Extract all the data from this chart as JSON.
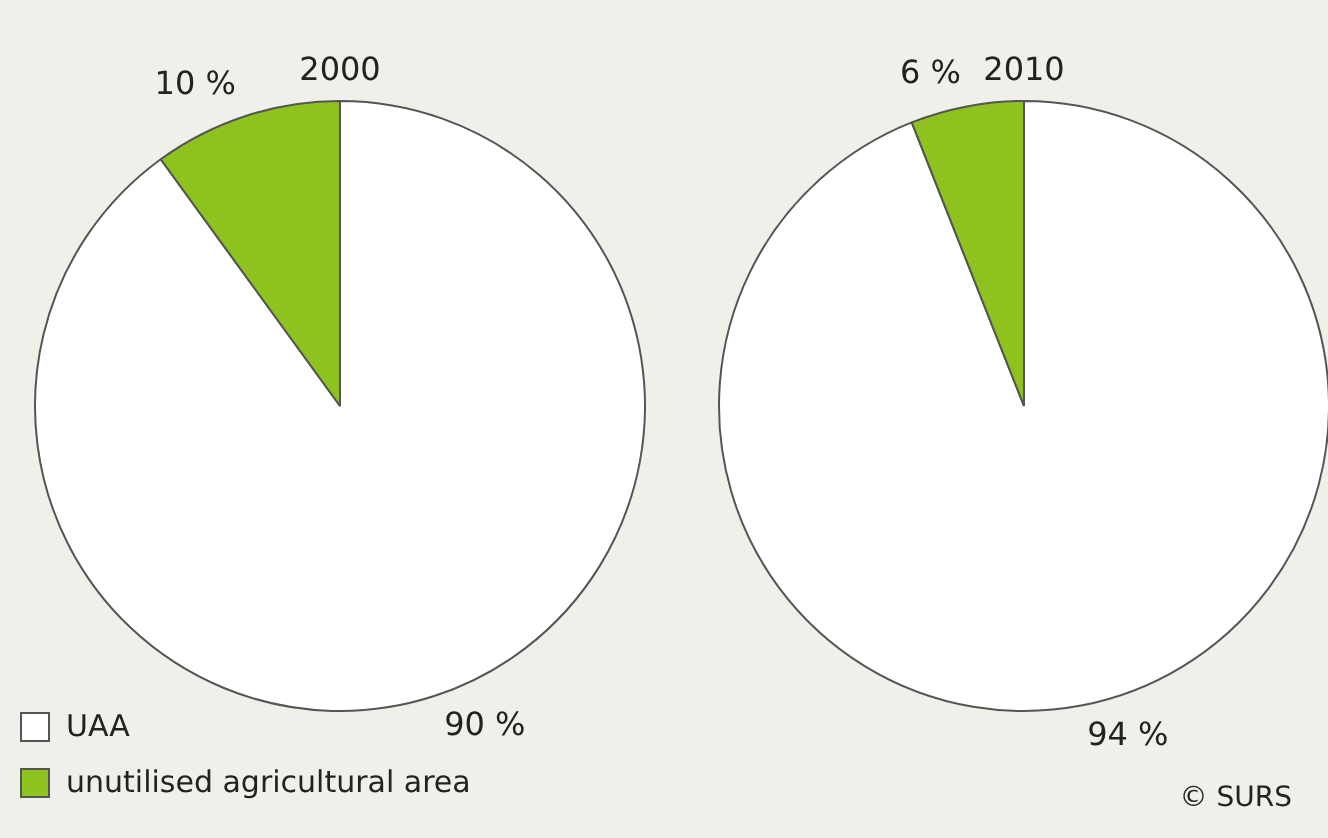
{
  "chart_data": [
    {
      "type": "pie",
      "title": "2000",
      "categories": [
        "UAA",
        "unutilised agricultural area"
      ],
      "values": [
        90,
        10
      ],
      "colors": [
        "#ffffff",
        "#8dc21f"
      ],
      "value_labels": [
        "90 %",
        "10 %"
      ],
      "legend": "bottom left"
    },
    {
      "type": "pie",
      "title": "2010",
      "categories": [
        null,
        null
      ],
      "values": [
        94,
        6
      ],
      "colors": [
        "#ffffff",
        "#8dc21f"
      ],
      "value_labels": [
        "94 %",
        "6 %"
      ],
      "annotations": [
        "© SURS"
      ]
    }
  ]
}
